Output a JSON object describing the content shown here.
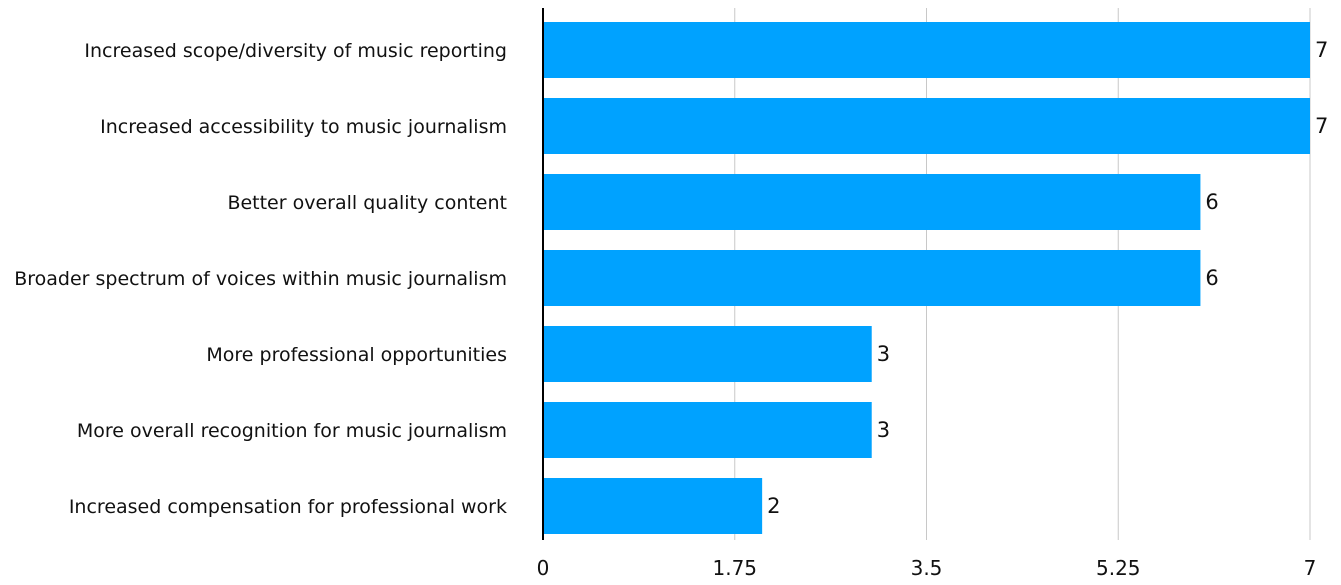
{
  "chart_data": {
    "type": "bar",
    "orientation": "horizontal",
    "title": "",
    "xlabel": "",
    "ylabel": "",
    "categories": [
      "Increased scope/diversity of music reporting",
      "Increased accessibility to music journalism",
      "Better overall quality content",
      "Broader spectrum of voices within music journalism",
      "More professional opportunities",
      "More overall recognition for music journalism",
      "Increased compensation for professional work"
    ],
    "values": [
      7,
      7,
      6,
      6,
      3,
      3,
      2
    ],
    "value_labels": [
      "7",
      "7",
      "6",
      "6",
      "3",
      "3",
      "2"
    ],
    "xlim": [
      0,
      7
    ],
    "xticks": [
      0,
      1.75,
      3.5,
      5.25,
      7
    ],
    "xtick_labels": [
      "0",
      "1.75",
      "3.5",
      "5.25",
      "7"
    ],
    "grid": "vertical",
    "legend": "none",
    "bar_color": "#00A2FF",
    "grid_color": "#C8C8C8",
    "axis_color": "#000000"
  }
}
